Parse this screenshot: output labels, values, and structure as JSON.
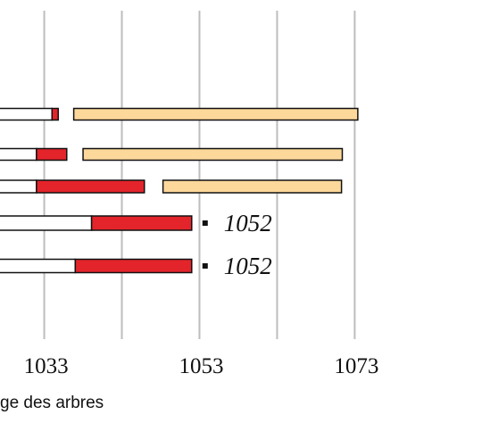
{
  "chart_data": {
    "type": "range-bar",
    "xlabel": "ge des arbres",
    "xlim": [
      1027.3,
      1089.4
    ],
    "xticks": [
      1033,
      1053,
      1073
    ],
    "xgrid": [
      1033,
      1043,
      1053,
      1063,
      1073
    ],
    "grid": true,
    "colors": [
      "#ffffff",
      "#e3242b",
      "#fdd89b"
    ],
    "rows": [
      {
        "ranges": [
          [
            1020,
            1034.0
          ],
          [
            1034.0,
            1034.8
          ],
          [
            1036.8,
            1073.4
          ]
        ]
      },
      {
        "ranges": [
          [
            1020,
            1032.0
          ],
          [
            1032.0,
            1035.9
          ],
          [
            1038.0,
            1071.4
          ]
        ]
      },
      {
        "ranges": [
          [
            1020,
            1032.0
          ],
          [
            1032.0,
            1045.9
          ],
          [
            1048.3,
            1071.3
          ]
        ]
      },
      {
        "ranges": [
          [
            1020,
            1039.1
          ],
          [
            1039.1,
            1052
          ]
        ],
        "label": "1052"
      },
      {
        "ranges": [
          [
            1020,
            1037.0
          ],
          [
            1037.0,
            1052
          ]
        ],
        "label": "1052"
      }
    ]
  }
}
